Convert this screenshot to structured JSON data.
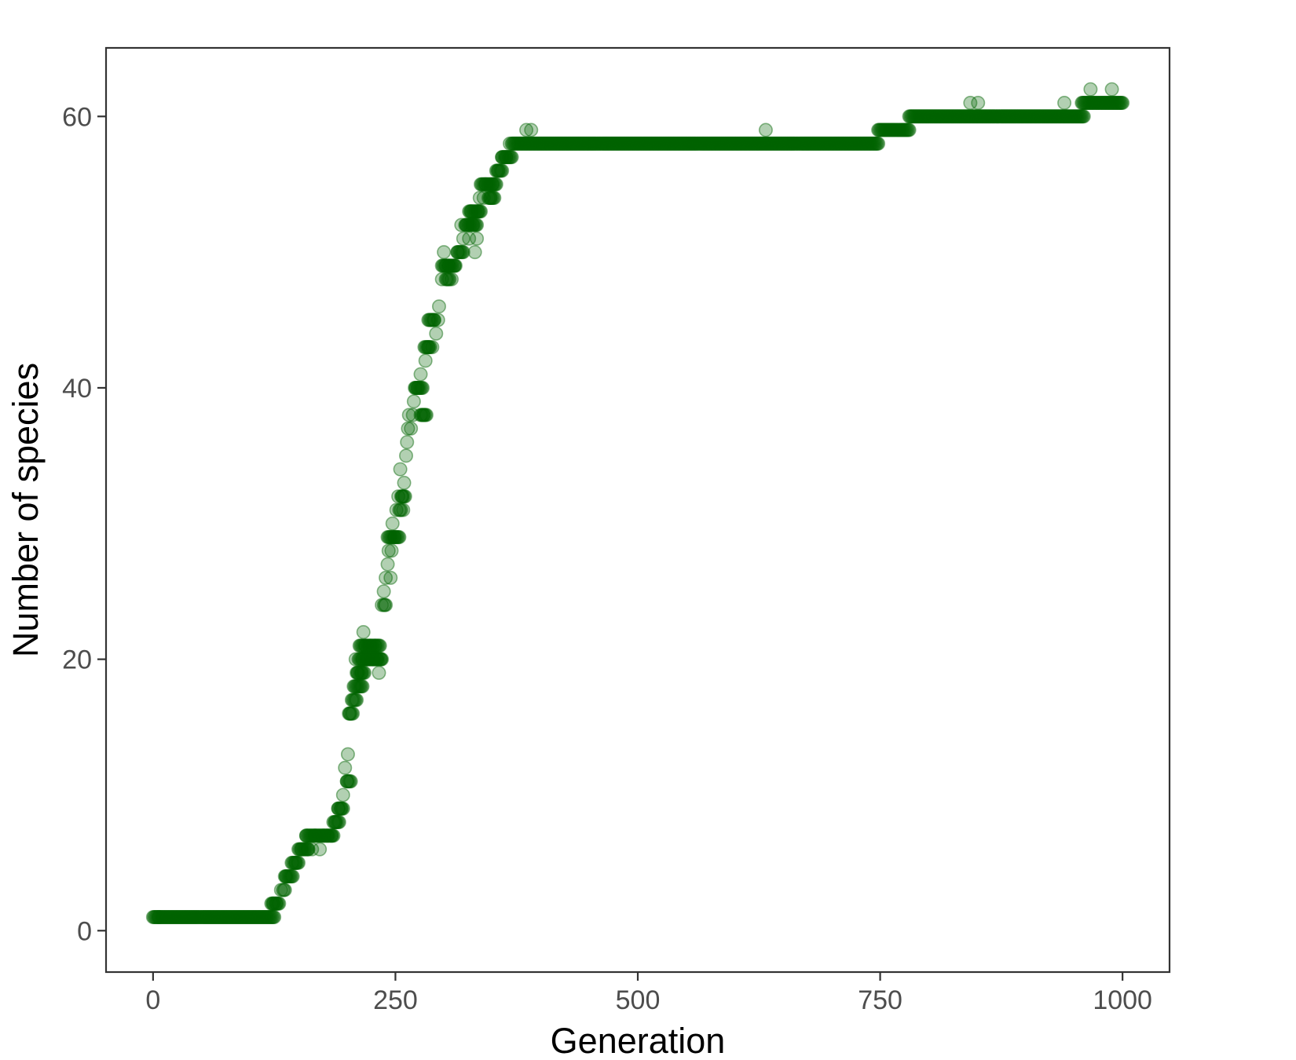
{
  "chart_data": {
    "type": "scatter",
    "title": "",
    "xlabel": "Generation",
    "ylabel": "Number of species",
    "xlim": [
      -48.5,
      1048.5
    ],
    "ylim": [
      -3.05,
      65.05
    ],
    "xticks": [
      0,
      250,
      500,
      750,
      1000
    ],
    "yticks": [
      0,
      20,
      40,
      60
    ],
    "grid": false,
    "legend": "none",
    "point_color": "#006400",
    "point_alpha": 0.3,
    "panel_border_color": "#333333",
    "series": [
      {
        "runs": [
          [
            0,
            125,
            1
          ],
          [
            122,
            130,
            2
          ],
          [
            134,
            136,
            3
          ],
          [
            136,
            144,
            4
          ],
          [
            144,
            150,
            5
          ],
          [
            150,
            160,
            6
          ],
          [
            158,
            186,
            7
          ],
          [
            186,
            192,
            8
          ],
          [
            191,
            196,
            9
          ],
          [
            200,
            204,
            11
          ],
          [
            202,
            206,
            16
          ],
          [
            206,
            210,
            17
          ],
          [
            208,
            216,
            18
          ],
          [
            210,
            218,
            19
          ],
          [
            212,
            236,
            20
          ],
          [
            214,
            234,
            21
          ],
          [
            238,
            240,
            24
          ],
          [
            242,
            254,
            29
          ],
          [
            254,
            256,
            31
          ],
          [
            256,
            260,
            32
          ],
          [
            270,
            278,
            40
          ],
          [
            276,
            282,
            38
          ],
          [
            280,
            286,
            43
          ],
          [
            284,
            290,
            45
          ],
          [
            298,
            312,
            49
          ],
          [
            302,
            306,
            48
          ],
          [
            314,
            320,
            50
          ],
          [
            322,
            334,
            52
          ],
          [
            326,
            338,
            53
          ],
          [
            338,
            354,
            55
          ],
          [
            346,
            352,
            54
          ],
          [
            354,
            360,
            56
          ],
          [
            360,
            370,
            57
          ],
          [
            370,
            748,
            58
          ],
          [
            748,
            780,
            59
          ],
          [
            780,
            960,
            60
          ],
          [
            958,
            1000,
            61
          ]
        ],
        "points": [
          [
            6,
            1
          ],
          [
            124,
            2
          ],
          [
            127,
            2
          ],
          [
            132,
            3
          ],
          [
            137,
            4
          ],
          [
            143,
            5
          ],
          [
            147,
            5
          ],
          [
            153,
            6
          ],
          [
            158,
            7
          ],
          [
            160,
            6
          ],
          [
            164,
            6
          ],
          [
            167,
            7
          ],
          [
            172,
            6
          ],
          [
            176,
            7
          ],
          [
            180,
            7
          ],
          [
            184,
            7
          ],
          [
            188,
            8
          ],
          [
            191,
            9
          ],
          [
            194,
            9
          ],
          [
            196,
            10
          ],
          [
            198,
            12
          ],
          [
            200,
            11
          ],
          [
            201,
            13
          ],
          [
            203,
            16
          ],
          [
            205,
            17
          ],
          [
            207,
            18
          ],
          [
            209,
            20
          ],
          [
            211,
            19
          ],
          [
            213,
            21
          ],
          [
            215,
            19
          ],
          [
            216,
            20
          ],
          [
            217,
            22
          ],
          [
            219,
            21
          ],
          [
            221,
            20
          ],
          [
            224,
            21
          ],
          [
            227,
            20
          ],
          [
            229,
            21
          ],
          [
            231,
            20
          ],
          [
            233,
            19
          ],
          [
            235,
            20
          ],
          [
            236,
            24
          ],
          [
            238,
            25
          ],
          [
            240,
            26
          ],
          [
            242,
            27
          ],
          [
            243,
            28
          ],
          [
            245,
            26
          ],
          [
            246,
            28
          ],
          [
            247,
            30
          ],
          [
            249,
            29
          ],
          [
            251,
            31
          ],
          [
            253,
            32
          ],
          [
            255,
            34
          ],
          [
            257,
            32
          ],
          [
            258,
            31
          ],
          [
            259,
            33
          ],
          [
            261,
            35
          ],
          [
            262,
            36
          ],
          [
            263,
            37
          ],
          [
            264,
            38
          ],
          [
            266,
            37
          ],
          [
            268,
            38
          ],
          [
            269,
            39
          ],
          [
            271,
            40
          ],
          [
            273,
            40
          ],
          [
            276,
            41
          ],
          [
            279,
            38
          ],
          [
            281,
            42
          ],
          [
            284,
            43
          ],
          [
            288,
            43
          ],
          [
            290,
            45
          ],
          [
            292,
            44
          ],
          [
            294,
            45
          ],
          [
            295,
            46
          ],
          [
            298,
            48
          ],
          [
            300,
            50
          ],
          [
            302,
            49
          ],
          [
            305,
            49
          ],
          [
            308,
            48
          ],
          [
            311,
            49
          ],
          [
            314,
            50
          ],
          [
            318,
            52
          ],
          [
            320,
            51
          ],
          [
            323,
            52
          ],
          [
            326,
            51
          ],
          [
            328,
            53
          ],
          [
            330,
            52
          ],
          [
            332,
            50
          ],
          [
            334,
            51
          ],
          [
            335,
            53
          ],
          [
            337,
            54
          ],
          [
            341,
            54
          ],
          [
            343,
            55
          ],
          [
            348,
            54
          ],
          [
            350,
            55
          ],
          [
            356,
            56
          ],
          [
            360,
            57
          ],
          [
            364,
            57
          ],
          [
            368,
            58
          ],
          [
            385,
            59
          ],
          [
            390,
            59
          ],
          [
            632,
            59
          ],
          [
            843,
            61
          ],
          [
            851,
            61
          ],
          [
            940,
            61
          ],
          [
            967,
            62
          ],
          [
            989,
            62
          ]
        ]
      }
    ]
  }
}
